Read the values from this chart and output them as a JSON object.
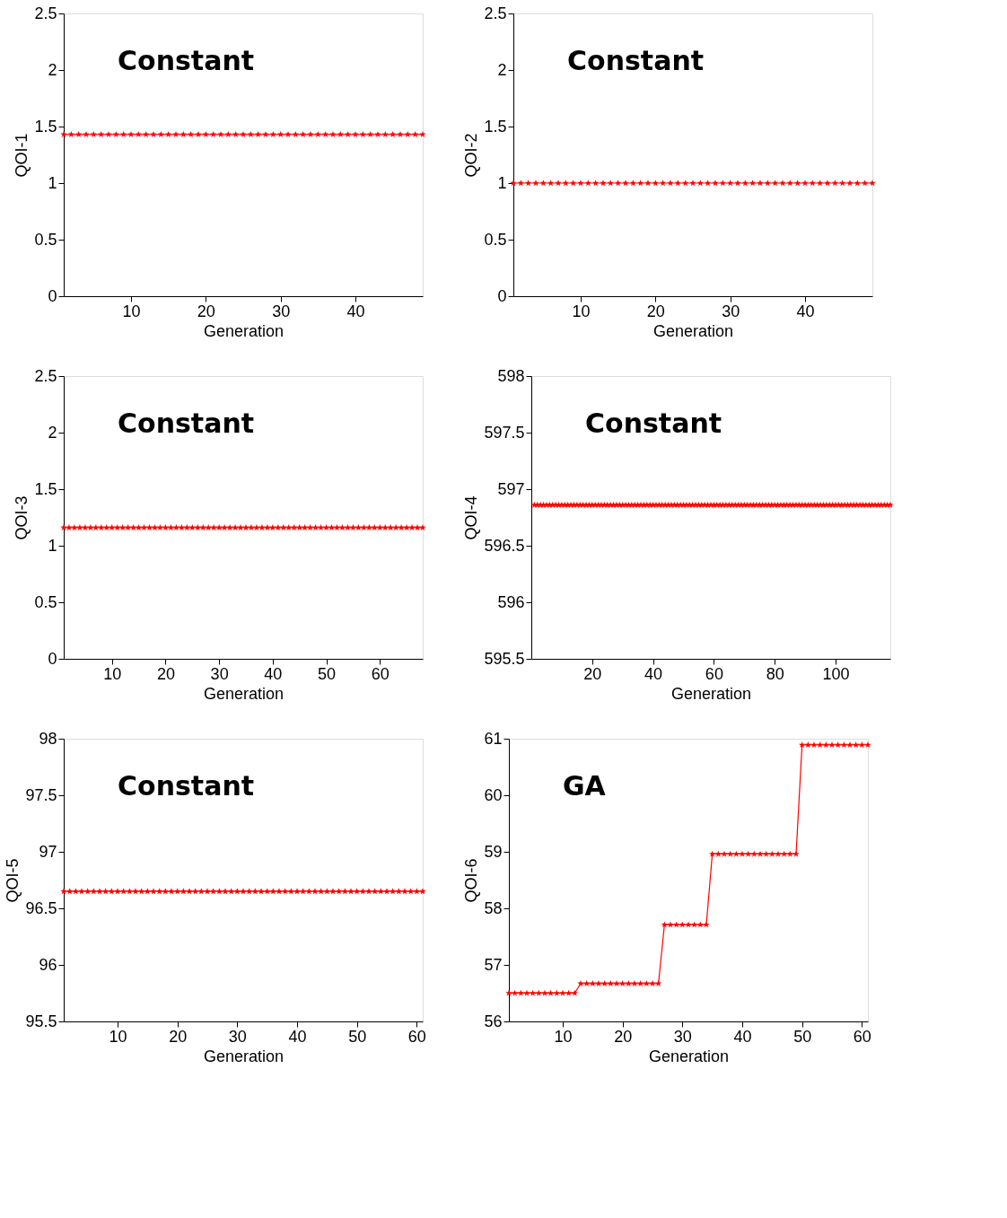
{
  "chart_data": [
    {
      "type": "line",
      "xlabel": "Generation",
      "ylabel": "QOI-1",
      "annotations": [
        "Constant"
      ],
      "xlim": [
        1,
        49
      ],
      "xticks": [
        10,
        20,
        30,
        40
      ],
      "ylim": [
        0,
        2.5
      ],
      "yticks": [
        0,
        0.5,
        1,
        1.5,
        2,
        2.5
      ],
      "grid": false,
      "legend": false,
      "marker": "star",
      "line_style": "solid",
      "x": [
        1,
        2,
        3,
        4,
        5,
        6,
        7,
        8,
        9,
        10,
        11,
        12,
        13,
        14,
        15,
        16,
        17,
        18,
        19,
        20,
        21,
        22,
        23,
        24,
        25,
        26,
        27,
        28,
        29,
        30,
        31,
        32,
        33,
        34,
        35,
        36,
        37,
        38,
        39,
        40,
        41,
        42,
        43,
        44,
        45,
        46,
        47,
        48,
        49
      ],
      "series": [
        {
          "color": "#ff0000",
          "values": [
            1.43,
            1.43,
            1.43,
            1.43,
            1.43,
            1.43,
            1.43,
            1.43,
            1.43,
            1.43,
            1.43,
            1.43,
            1.43,
            1.43,
            1.43,
            1.43,
            1.43,
            1.43,
            1.43,
            1.43,
            1.43,
            1.43,
            1.43,
            1.43,
            1.43,
            1.43,
            1.43,
            1.43,
            1.43,
            1.43,
            1.43,
            1.43,
            1.43,
            1.43,
            1.43,
            1.43,
            1.43,
            1.43,
            1.43,
            1.43,
            1.43,
            1.43,
            1.43,
            1.43,
            1.43,
            1.43,
            1.43,
            1.43,
            1.43
          ]
        }
      ]
    },
    {
      "type": "line",
      "xlabel": "Generation",
      "ylabel": "QOI-2",
      "annotations": [
        "Constant"
      ],
      "xlim": [
        1,
        49
      ],
      "xticks": [
        10,
        20,
        30,
        40
      ],
      "ylim": [
        0,
        2.5
      ],
      "yticks": [
        0,
        0.5,
        1,
        1.5,
        2,
        2.5
      ],
      "grid": false,
      "legend": false,
      "marker": "star",
      "line_style": "solid",
      "x": [
        1,
        2,
        3,
        4,
        5,
        6,
        7,
        8,
        9,
        10,
        11,
        12,
        13,
        14,
        15,
        16,
        17,
        18,
        19,
        20,
        21,
        22,
        23,
        24,
        25,
        26,
        27,
        28,
        29,
        30,
        31,
        32,
        33,
        34,
        35,
        36,
        37,
        38,
        39,
        40,
        41,
        42,
        43,
        44,
        45,
        46,
        47,
        48,
        49
      ],
      "series": [
        {
          "color": "#ff0000",
          "values": [
            1,
            1,
            1,
            1,
            1,
            1,
            1,
            1,
            1,
            1,
            1,
            1,
            1,
            1,
            1,
            1,
            1,
            1,
            1,
            1,
            1,
            1,
            1,
            1,
            1,
            1,
            1,
            1,
            1,
            1,
            1,
            1,
            1,
            1,
            1,
            1,
            1,
            1,
            1,
            1,
            1,
            1,
            1,
            1,
            1,
            1,
            1,
            1,
            1
          ]
        }
      ]
    },
    {
      "type": "line",
      "xlabel": "Generation",
      "ylabel": "QOI-3",
      "annotations": [
        "Constant"
      ],
      "xlim": [
        1,
        68
      ],
      "xticks": [
        10,
        20,
        30,
        40,
        50,
        60
      ],
      "ylim": [
        0,
        2.5
      ],
      "yticks": [
        0,
        0.5,
        1,
        1.5,
        2,
        2.5
      ],
      "grid": false,
      "legend": false,
      "marker": "star",
      "line_style": "solid",
      "x": [
        1,
        2,
        3,
        4,
        5,
        6,
        7,
        8,
        9,
        10,
        11,
        12,
        13,
        14,
        15,
        16,
        17,
        18,
        19,
        20,
        21,
        22,
        23,
        24,
        25,
        26,
        27,
        28,
        29,
        30,
        31,
        32,
        33,
        34,
        35,
        36,
        37,
        38,
        39,
        40,
        41,
        42,
        43,
        44,
        45,
        46,
        47,
        48,
        49,
        50,
        51,
        52,
        53,
        54,
        55,
        56,
        57,
        58,
        59,
        60,
        61,
        62,
        63,
        64,
        65,
        66,
        67,
        68
      ],
      "series": [
        {
          "color": "#ff0000",
          "values": [
            1.16,
            1.16,
            1.16,
            1.16,
            1.16,
            1.16,
            1.16,
            1.16,
            1.16,
            1.16,
            1.16,
            1.16,
            1.16,
            1.16,
            1.16,
            1.16,
            1.16,
            1.16,
            1.16,
            1.16,
            1.16,
            1.16,
            1.16,
            1.16,
            1.16,
            1.16,
            1.16,
            1.16,
            1.16,
            1.16,
            1.16,
            1.16,
            1.16,
            1.16,
            1.16,
            1.16,
            1.16,
            1.16,
            1.16,
            1.16,
            1.16,
            1.16,
            1.16,
            1.16,
            1.16,
            1.16,
            1.16,
            1.16,
            1.16,
            1.16,
            1.16,
            1.16,
            1.16,
            1.16,
            1.16,
            1.16,
            1.16,
            1.16,
            1.16,
            1.16,
            1.16,
            1.16,
            1.16,
            1.16,
            1.16,
            1.16,
            1.16,
            1.16
          ]
        }
      ]
    },
    {
      "type": "line",
      "xlabel": "Generation",
      "ylabel": "QOI-4",
      "annotations": [
        "Constant"
      ],
      "xlim": [
        0,
        118
      ],
      "xticks": [
        20,
        40,
        60,
        80,
        100
      ],
      "ylim": [
        595.5,
        598
      ],
      "yticks": [
        595.5,
        596,
        596.5,
        597,
        597.5,
        598
      ],
      "grid": false,
      "legend": false,
      "marker": "star",
      "line_style": "solid",
      "x": [
        1,
        2,
        3,
        4,
        5,
        6,
        7,
        8,
        9,
        10,
        11,
        12,
        13,
        14,
        15,
        16,
        17,
        18,
        19,
        20,
        21,
        22,
        23,
        24,
        25,
        26,
        27,
        28,
        29,
        30,
        31,
        32,
        33,
        34,
        35,
        36,
        37,
        38,
        39,
        40,
        41,
        42,
        43,
        44,
        45,
        46,
        47,
        48,
        49,
        50,
        51,
        52,
        53,
        54,
        55,
        56,
        57,
        58,
        59,
        60,
        61,
        62,
        63,
        64,
        65,
        66,
        67,
        68,
        69,
        70,
        71,
        72,
        73,
        74,
        75,
        76,
        77,
        78,
        79,
        80,
        81,
        82,
        83,
        84,
        85,
        86,
        87,
        88,
        89,
        90,
        91,
        92,
        93,
        94,
        95,
        96,
        97,
        98,
        99,
        100,
        101,
        102,
        103,
        104,
        105,
        106,
        107,
        108,
        109,
        110,
        111,
        112,
        113,
        114,
        115,
        116,
        117,
        118
      ],
      "series": [
        {
          "color": "#ff0000",
          "values": [
            596.86,
            596.86,
            596.86,
            596.86,
            596.86,
            596.86,
            596.86,
            596.86,
            596.86,
            596.86,
            596.86,
            596.86,
            596.86,
            596.86,
            596.86,
            596.86,
            596.86,
            596.86,
            596.86,
            596.86,
            596.86,
            596.86,
            596.86,
            596.86,
            596.86,
            596.86,
            596.86,
            596.86,
            596.86,
            596.86,
            596.86,
            596.86,
            596.86,
            596.86,
            596.86,
            596.86,
            596.86,
            596.86,
            596.86,
            596.86,
            596.86,
            596.86,
            596.86,
            596.86,
            596.86,
            596.86,
            596.86,
            596.86,
            596.86,
            596.86,
            596.86,
            596.86,
            596.86,
            596.86,
            596.86,
            596.86,
            596.86,
            596.86,
            596.86,
            596.86,
            596.86,
            596.86,
            596.86,
            596.86,
            596.86,
            596.86,
            596.86,
            596.86,
            596.86,
            596.86,
            596.86,
            596.86,
            596.86,
            596.86,
            596.86,
            596.86,
            596.86,
            596.86,
            596.86,
            596.86,
            596.86,
            596.86,
            596.86,
            596.86,
            596.86,
            596.86,
            596.86,
            596.86,
            596.86,
            596.86,
            596.86,
            596.86,
            596.86,
            596.86,
            596.86,
            596.86,
            596.86,
            596.86,
            596.86,
            596.86,
            596.86,
            596.86,
            596.86,
            596.86,
            596.86,
            596.86,
            596.86,
            596.86,
            596.86,
            596.86,
            596.86,
            596.86,
            596.86,
            596.86,
            596.86,
            596.86,
            596.86,
            596.86
          ]
        }
      ]
    },
    {
      "type": "line",
      "xlabel": "Generation",
      "ylabel": "QOI-5",
      "annotations": [
        "Constant"
      ],
      "xlim": [
        1,
        61
      ],
      "xticks": [
        10,
        20,
        30,
        40,
        50,
        60
      ],
      "ylim": [
        95.5,
        98
      ],
      "yticks": [
        95.5,
        96,
        96.5,
        97,
        97.5,
        98
      ],
      "grid": false,
      "legend": false,
      "marker": "star",
      "line_style": "solid",
      "x": [
        1,
        2,
        3,
        4,
        5,
        6,
        7,
        8,
        9,
        10,
        11,
        12,
        13,
        14,
        15,
        16,
        17,
        18,
        19,
        20,
        21,
        22,
        23,
        24,
        25,
        26,
        27,
        28,
        29,
        30,
        31,
        32,
        33,
        34,
        35,
        36,
        37,
        38,
        39,
        40,
        41,
        42,
        43,
        44,
        45,
        46,
        47,
        48,
        49,
        50,
        51,
        52,
        53,
        54,
        55,
        56,
        57,
        58,
        59,
        60,
        61
      ],
      "series": [
        {
          "color": "#ff0000",
          "values": [
            96.65,
            96.65,
            96.65,
            96.65,
            96.65,
            96.65,
            96.65,
            96.65,
            96.65,
            96.65,
            96.65,
            96.65,
            96.65,
            96.65,
            96.65,
            96.65,
            96.65,
            96.65,
            96.65,
            96.65,
            96.65,
            96.65,
            96.65,
            96.65,
            96.65,
            96.65,
            96.65,
            96.65,
            96.65,
            96.65,
            96.65,
            96.65,
            96.65,
            96.65,
            96.65,
            96.65,
            96.65,
            96.65,
            96.65,
            96.65,
            96.65,
            96.65,
            96.65,
            96.65,
            96.65,
            96.65,
            96.65,
            96.65,
            96.65,
            96.65,
            96.65,
            96.65,
            96.65,
            96.65,
            96.65,
            96.65,
            96.65,
            96.65,
            96.65,
            96.65,
            96.65
          ]
        }
      ]
    },
    {
      "type": "line",
      "xlabel": "Generation",
      "ylabel": "QOI-6",
      "annotations": [
        "GA"
      ],
      "xlim": [
        1,
        61
      ],
      "xticks": [
        10,
        20,
        30,
        40,
        50,
        60
      ],
      "ylim": [
        56,
        61
      ],
      "yticks": [
        56,
        57,
        58,
        59,
        60,
        61
      ],
      "grid": false,
      "legend": false,
      "marker": "star",
      "line_style": "solid",
      "x": [
        1,
        2,
        3,
        4,
        5,
        6,
        7,
        8,
        9,
        10,
        11,
        12,
        13,
        14,
        15,
        16,
        17,
        18,
        19,
        20,
        21,
        22,
        23,
        24,
        25,
        26,
        27,
        28,
        29,
        30,
        31,
        32,
        33,
        34,
        35,
        36,
        37,
        38,
        39,
        40,
        41,
        42,
        43,
        44,
        45,
        46,
        47,
        48,
        49,
        50,
        51,
        52,
        53,
        54,
        55,
        56,
        57,
        58,
        59,
        60,
        61
      ],
      "series": [
        {
          "color": "#ff0000",
          "values": [
            56.5,
            56.5,
            56.5,
            56.5,
            56.5,
            56.5,
            56.5,
            56.5,
            56.5,
            56.5,
            56.5,
            56.5,
            56.67,
            56.67,
            56.67,
            56.67,
            56.67,
            56.67,
            56.67,
            56.67,
            56.67,
            56.67,
            56.67,
            56.67,
            56.67,
            56.67,
            57.71,
            57.71,
            57.71,
            57.71,
            57.71,
            57.71,
            57.71,
            57.71,
            58.96,
            58.96,
            58.96,
            58.96,
            58.96,
            58.96,
            58.96,
            58.96,
            58.96,
            58.96,
            58.96,
            58.96,
            58.96,
            58.96,
            58.96,
            60.89,
            60.89,
            60.89,
            60.89,
            60.89,
            60.89,
            60.89,
            60.89,
            60.89,
            60.89,
            60.89,
            60.89
          ]
        }
      ]
    }
  ]
}
